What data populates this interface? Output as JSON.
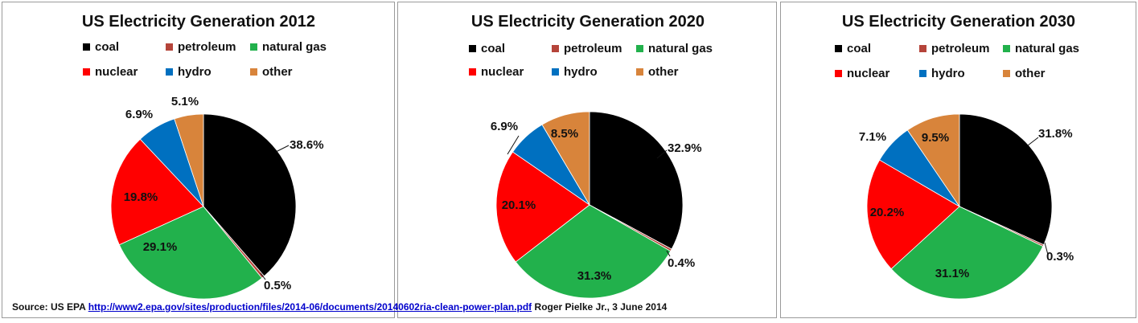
{
  "chart_data": [
    {
      "type": "pie",
      "title": "US Electricity Generation 2012",
      "categories": [
        "coal",
        "petroleum",
        "natural gas",
        "nuclear",
        "hydro",
        "other"
      ],
      "values": [
        38.6,
        0.5,
        29.1,
        19.8,
        6.9,
        5.1
      ],
      "labels": [
        "38.6%",
        "0.5%",
        "29.1%",
        "19.8%",
        "6.9%",
        "5.1%"
      ]
    },
    {
      "type": "pie",
      "title": "US Electricity Generation 2020",
      "categories": [
        "coal",
        "petroleum",
        "natural gas",
        "nuclear",
        "hydro",
        "other"
      ],
      "values": [
        32.9,
        0.4,
        31.3,
        20.1,
        6.9,
        8.5
      ],
      "labels": [
        "32.9%",
        "0.4%",
        "31.3%",
        "20.1%",
        "6.9%",
        "8.5%"
      ]
    },
    {
      "type": "pie",
      "title": "US Electricity Generation 2030",
      "categories": [
        "coal",
        "petroleum",
        "natural gas",
        "nuclear",
        "hydro",
        "other"
      ],
      "values": [
        31.8,
        0.3,
        31.1,
        20.2,
        7.1,
        9.5
      ],
      "labels": [
        "31.8%",
        "0.3%",
        "31.1%",
        "20.2%",
        "7.1%",
        "9.5%"
      ]
    }
  ],
  "colors": {
    "coal": "#000000",
    "petroleum": "#b5443a",
    "natural gas": "#22b14c",
    "nuclear": "#ff0000",
    "hydro": "#0070c0",
    "other": "#d8843b"
  },
  "source": {
    "prefix": "Source: US EPA",
    "link": "http://www2.epa.gov/sites/production/files/2014-06/documents/20140602ria-clean-power-plan.pdf",
    "suffix": "Roger Pielke Jr., 3 June 2014"
  }
}
